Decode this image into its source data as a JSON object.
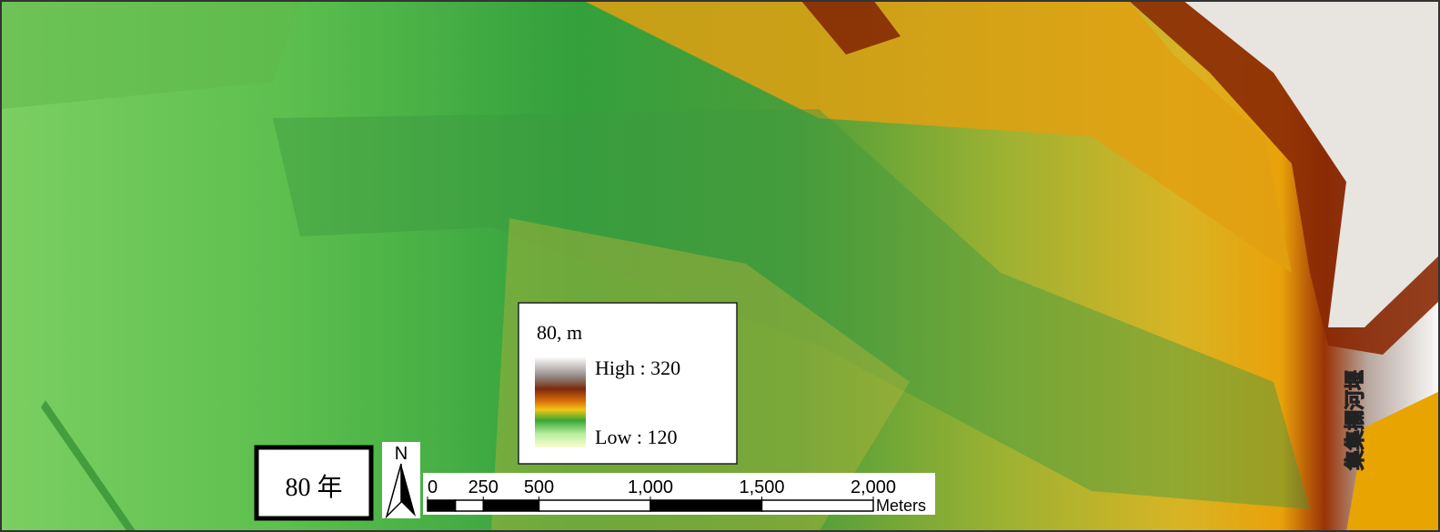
{
  "map": {
    "year_label": "80 年",
    "north_label": "N",
    "weir_label": "集集攔河堰",
    "legend": {
      "title": "80, m",
      "high": "High : 320",
      "low": "Low : 120"
    },
    "scale_bar": {
      "ticks": [
        0,
        250,
        500,
        {
          "value": 1000,
          "label": "1,000"
        },
        {
          "value": 1500,
          "label": "1,500"
        },
        {
          "value": 2000,
          "label": "2,000"
        }
      ],
      "unit": "Meters"
    }
  }
}
